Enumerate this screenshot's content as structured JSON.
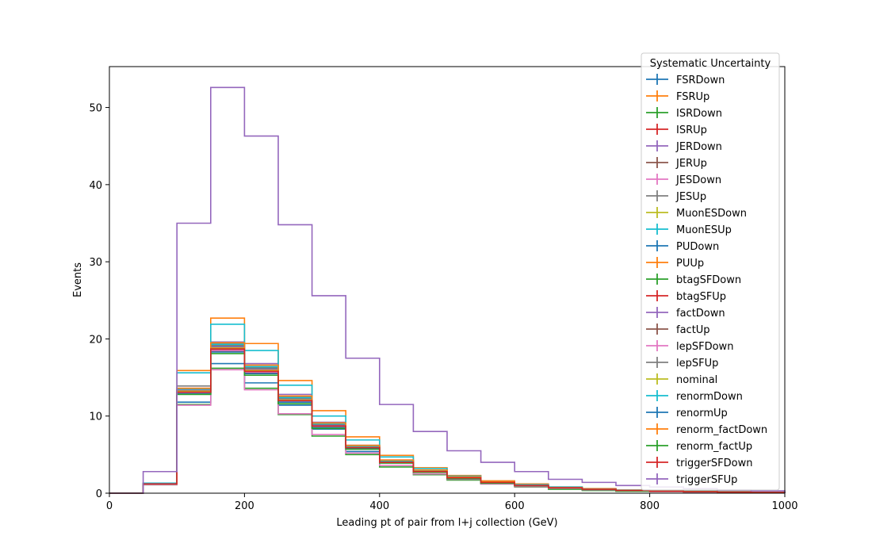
{
  "chart_data": {
    "type": "histogram",
    "xlabel": "Leading pt of pair from l+j collection (GeV)",
    "ylabel": "Events",
    "xlim": [
      0,
      1000
    ],
    "ylim": [
      0,
      55.3
    ],
    "bin_edges": [
      0,
      50,
      100,
      150,
      200,
      250,
      300,
      350,
      400,
      450,
      500,
      550,
      600,
      650,
      700,
      750,
      800,
      850,
      900,
      950,
      1000
    ],
    "x_ticks": [
      0,
      200,
      400,
      600,
      800,
      1000
    ],
    "y_ticks": [
      0,
      10,
      20,
      30,
      40,
      50
    ],
    "grid": false,
    "legend": {
      "title": "Systematic Uncertainty",
      "placement": "top-right"
    },
    "series": [
      {
        "name": "FSRDown",
        "color": "#1f77b4",
        "values": [
          0,
          1.2,
          11.8,
          16.8,
          14.3,
          11.4,
          8.3,
          5.4,
          4.0,
          2.7,
          1.9,
          1.3,
          0.9,
          0.6,
          0.4,
          0.3,
          0.25,
          0.2,
          0.15,
          0.1
        ]
      },
      {
        "name": "FSRUp",
        "color": "#ff7f0e",
        "values": [
          0,
          1.3,
          15.9,
          22.7,
          19.4,
          14.6,
          10.7,
          7.3,
          4.9,
          3.3,
          2.3,
          1.6,
          1.2,
          0.8,
          0.6,
          0.4,
          0.3,
          0.25,
          0.2,
          0.1
        ]
      },
      {
        "name": "ISRDown",
        "color": "#2ca02c",
        "values": [
          0,
          1.1,
          11.5,
          16.2,
          13.6,
          10.2,
          7.4,
          5.0,
          3.4,
          2.4,
          1.7,
          1.2,
          0.8,
          0.5,
          0.35,
          0.25,
          0.2,
          0.15,
          0.1,
          0.05
        ]
      },
      {
        "name": "ISRUp",
        "color": "#d62728",
        "values": [
          0,
          1.2,
          13.3,
          18.5,
          15.5,
          11.8,
          8.6,
          5.9,
          4.1,
          2.8,
          2.0,
          1.4,
          1.0,
          0.7,
          0.5,
          0.35,
          0.25,
          0.2,
          0.15,
          0.1
        ]
      },
      {
        "name": "JERDown",
        "color": "#9467bd",
        "values": [
          0,
          1.2,
          13.6,
          19.6,
          16.8,
          12.8,
          9.2,
          6.2,
          4.3,
          3.0,
          2.1,
          1.5,
          1.0,
          0.7,
          0.5,
          0.35,
          0.25,
          0.2,
          0.15,
          0.1
        ]
      },
      {
        "name": "JERUp",
        "color": "#8c564b",
        "values": [
          0,
          1.2,
          13.2,
          18.9,
          16.1,
          12.2,
          8.8,
          6.0,
          4.1,
          2.9,
          2.0,
          1.4,
          1.0,
          0.7,
          0.5,
          0.35,
          0.25,
          0.2,
          0.15,
          0.1
        ]
      },
      {
        "name": "JESDown",
        "color": "#e377c2",
        "values": [
          0,
          1.1,
          11.4,
          16.0,
          13.4,
          10.3,
          7.6,
          5.2,
          3.6,
          2.5,
          1.8,
          1.2,
          0.85,
          0.6,
          0.4,
          0.3,
          0.2,
          0.15,
          0.1,
          0.05
        ]
      },
      {
        "name": "JESUp",
        "color": "#7f7f7f",
        "values": [
          0,
          1.3,
          13.9,
          19.4,
          16.6,
          12.5,
          9.0,
          6.2,
          4.2,
          2.9,
          2.0,
          1.4,
          1.0,
          0.7,
          0.5,
          0.35,
          0.25,
          0.2,
          0.15,
          0.1
        ]
      },
      {
        "name": "MuonESDown",
        "color": "#bcbd22",
        "values": [
          0,
          1.2,
          13.1,
          18.7,
          15.9,
          12.0,
          8.7,
          5.9,
          4.1,
          2.8,
          2.0,
          1.4,
          1.0,
          0.7,
          0.5,
          0.35,
          0.25,
          0.2,
          0.15,
          0.1
        ]
      },
      {
        "name": "MuonESUp",
        "color": "#17becf",
        "values": [
          0,
          1.3,
          15.6,
          21.9,
          18.5,
          14.0,
          10.0,
          6.9,
          4.7,
          3.2,
          2.2,
          1.5,
          1.1,
          0.8,
          0.55,
          0.4,
          0.3,
          0.25,
          0.2,
          0.1
        ]
      },
      {
        "name": "PUDown",
        "color": "#1f77b4",
        "values": [
          0,
          1.2,
          13.2,
          18.8,
          15.9,
          12.1,
          8.7,
          5.9,
          4.1,
          2.8,
          2.0,
          1.4,
          1.0,
          0.7,
          0.5,
          0.35,
          0.25,
          0.2,
          0.15,
          0.1
        ]
      },
      {
        "name": "PUUp",
        "color": "#ff7f0e",
        "values": [
          0,
          1.2,
          13.3,
          18.9,
          16.0,
          12.2,
          8.8,
          6.0,
          4.1,
          2.9,
          2.0,
          1.4,
          1.0,
          0.7,
          0.5,
          0.35,
          0.25,
          0.2,
          0.15,
          0.1
        ]
      },
      {
        "name": "btagSFDown",
        "color": "#2ca02c",
        "values": [
          0,
          1.2,
          13.4,
          19.1,
          16.2,
          12.3,
          8.9,
          6.1,
          4.2,
          2.9,
          2.0,
          1.4,
          1.0,
          0.7,
          0.5,
          0.35,
          0.25,
          0.2,
          0.15,
          0.1
        ]
      },
      {
        "name": "btagSFUp",
        "color": "#d62728",
        "values": [
          0,
          1.2,
          13.0,
          18.4,
          15.6,
          11.9,
          8.6,
          5.8,
          4.0,
          2.8,
          1.9,
          1.3,
          0.95,
          0.65,
          0.45,
          0.3,
          0.25,
          0.2,
          0.15,
          0.1
        ]
      },
      {
        "name": "factDown",
        "color": "#9467bd",
        "values": [
          0,
          1.2,
          13.4,
          19.0,
          16.1,
          12.2,
          8.8,
          6.0,
          4.1,
          2.9,
          2.0,
          1.4,
          1.0,
          0.7,
          0.5,
          0.35,
          0.25,
          0.2,
          0.15,
          0.1
        ]
      },
      {
        "name": "factUp",
        "color": "#8c564b",
        "values": [
          0,
          1.2,
          13.1,
          18.6,
          15.8,
          12.0,
          8.7,
          5.9,
          4.0,
          2.8,
          2.0,
          1.4,
          1.0,
          0.7,
          0.5,
          0.35,
          0.25,
          0.2,
          0.15,
          0.1
        ]
      },
      {
        "name": "lepSFDown",
        "color": "#e377c2",
        "values": [
          0,
          1.2,
          13.0,
          18.5,
          15.7,
          11.9,
          8.6,
          5.9,
          4.0,
          2.8,
          1.9,
          1.4,
          1.0,
          0.7,
          0.5,
          0.35,
          0.25,
          0.2,
          0.15,
          0.1
        ]
      },
      {
        "name": "lepSFUp",
        "color": "#7f7f7f",
        "values": [
          0,
          1.2,
          13.5,
          19.2,
          16.3,
          12.4,
          9.0,
          6.1,
          4.2,
          2.9,
          2.0,
          1.4,
          1.0,
          0.7,
          0.5,
          0.35,
          0.25,
          0.2,
          0.15,
          0.1
        ]
      },
      {
        "name": "nominal",
        "color": "#bcbd22",
        "values": [
          0,
          1.2,
          13.2,
          18.8,
          15.9,
          12.1,
          8.7,
          5.9,
          4.1,
          2.8,
          2.0,
          1.4,
          1.0,
          0.7,
          0.5,
          0.35,
          0.25,
          0.2,
          0.15,
          0.1
        ]
      },
      {
        "name": "renormDown",
        "color": "#17becf",
        "values": [
          0,
          1.2,
          13.5,
          19.3,
          16.4,
          12.4,
          9.0,
          6.1,
          4.2,
          2.9,
          2.0,
          1.4,
          1.0,
          0.7,
          0.5,
          0.35,
          0.25,
          0.2,
          0.15,
          0.1
        ]
      },
      {
        "name": "renormUp",
        "color": "#1f77b4",
        "values": [
          0,
          1.2,
          12.9,
          18.3,
          15.5,
          11.8,
          8.5,
          5.8,
          4.0,
          2.7,
          1.9,
          1.3,
          0.95,
          0.65,
          0.45,
          0.3,
          0.25,
          0.2,
          0.15,
          0.1
        ]
      },
      {
        "name": "renorm_factDown",
        "color": "#ff7f0e",
        "values": [
          0,
          1.2,
          13.6,
          19.5,
          16.6,
          12.6,
          9.1,
          6.2,
          4.3,
          3.0,
          2.1,
          1.5,
          1.0,
          0.7,
          0.5,
          0.35,
          0.25,
          0.2,
          0.15,
          0.1
        ]
      },
      {
        "name": "renorm_factUp",
        "color": "#2ca02c",
        "values": [
          0,
          1.2,
          12.8,
          18.1,
          15.3,
          11.6,
          8.4,
          5.7,
          3.9,
          2.7,
          1.9,
          1.3,
          0.95,
          0.65,
          0.45,
          0.3,
          0.25,
          0.2,
          0.15,
          0.1
        ]
      },
      {
        "name": "triggerSFDown",
        "color": "#d62728",
        "values": [
          0,
          1.2,
          13.1,
          18.7,
          15.8,
          12.0,
          8.7,
          5.9,
          4.0,
          2.8,
          2.0,
          1.4,
          1.0,
          0.7,
          0.5,
          0.35,
          0.25,
          0.2,
          0.15,
          0.1
        ]
      },
      {
        "name": "triggerSFUp",
        "color": "#9467bd",
        "values": [
          0,
          2.8,
          35.0,
          52.6,
          46.3,
          34.8,
          25.6,
          17.5,
          11.5,
          8.0,
          5.5,
          4.0,
          2.8,
          1.8,
          1.4,
          1.0,
          0.8,
          0.6,
          0.4,
          0.3
        ]
      }
    ]
  }
}
